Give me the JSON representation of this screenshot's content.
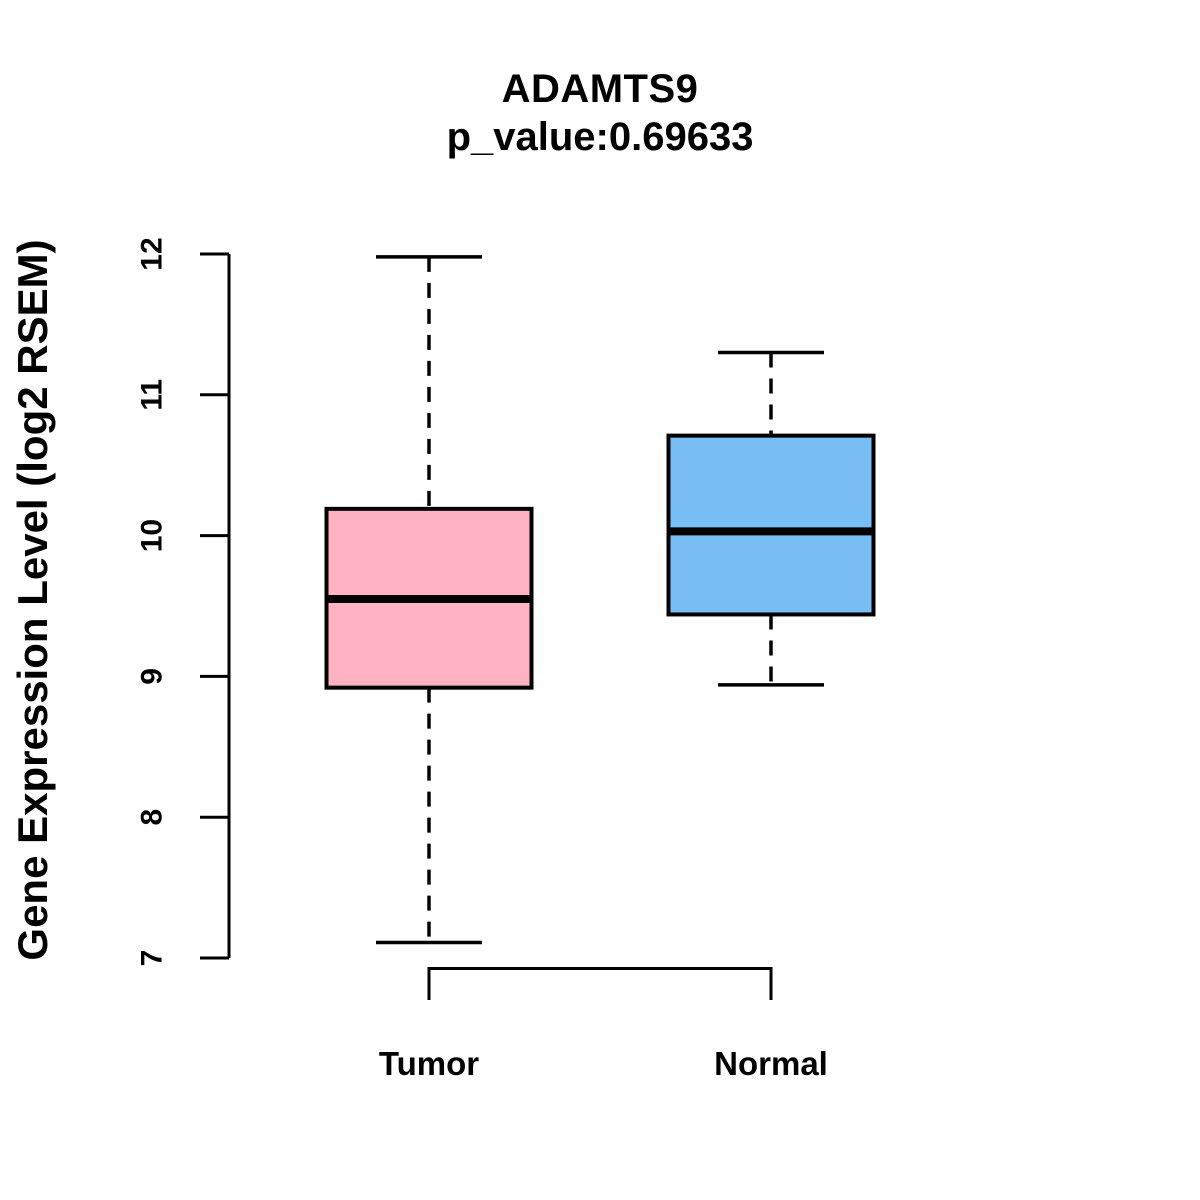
{
  "chart_data": {
    "type": "boxplot",
    "title": "ADAMTS9",
    "subtitle": "p_value:0.69633",
    "ylabel": "Gene Expression Level (log2 RSEM)",
    "ylim": [
      7,
      12
    ],
    "yticks": [
      "7",
      "8",
      "9",
      "10",
      "11",
      "12"
    ],
    "categories": [
      "Tumor",
      "Normal"
    ],
    "series": [
      {
        "name": "Tumor",
        "color": "#FFB2C1",
        "whisker_low": 7.11,
        "q1": 8.92,
        "median": 9.55,
        "q3": 10.19,
        "whisker_high": 11.98
      },
      {
        "name": "Normal",
        "color": "#78BEF5",
        "whisker_low": 8.94,
        "q1": 9.44,
        "median": 10.03,
        "q3": 10.71,
        "whisker_high": 11.3
      }
    ],
    "line_color": "#000000",
    "background": "#FFFFFF",
    "grid": false,
    "legend": "none"
  }
}
